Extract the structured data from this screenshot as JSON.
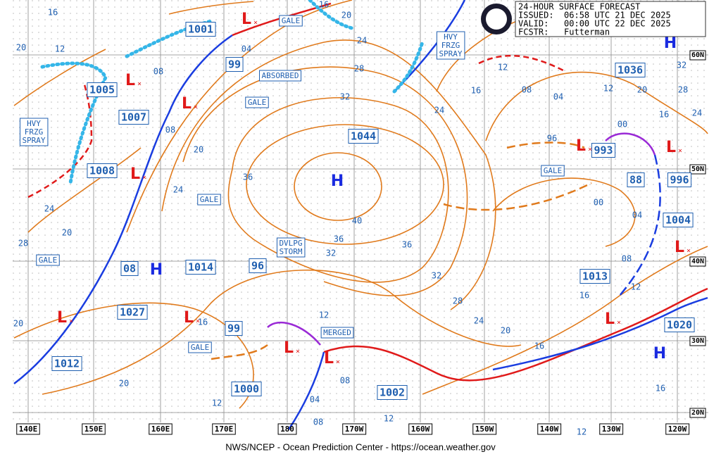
{
  "header": {
    "lines": [
      "24-HOUR SURFACE FORECAST",
      "ISSUED:  06:58 UTC 21 DEC 2025",
      "VALID:   00:00 UTC 22 DEC 2025",
      "FCSTR:   Futterman"
    ]
  },
  "footer": "NWS/NCEP - Ocean Prediction Center - https://ocean.weather.gov",
  "longitudes": [
    "140E",
    "150E",
    "160E",
    "170E",
    "180",
    "170W",
    "160W",
    "150W",
    "140W",
    "130W",
    "120W"
  ],
  "latitudes": [
    "60N",
    "50N",
    "40N",
    "30N",
    "20N"
  ],
  "pressures": [
    "1001",
    "99",
    "1005",
    "1007",
    "1008",
    "1044",
    "993",
    "996",
    "88",
    "1036",
    "1004",
    "1014",
    "08",
    "1027",
    "96",
    "1013",
    "99",
    "1000",
    "1002",
    "1012",
    "1020"
  ],
  "highs": [
    "H",
    "H",
    "H",
    "H"
  ],
  "lows": [
    "L",
    "L",
    "L",
    "L",
    "L",
    "L",
    "L",
    "L",
    "L",
    "L",
    "L",
    "L"
  ],
  "isobar_labels": [
    "16",
    "20",
    "12",
    "04",
    "08",
    "08",
    "20",
    "24",
    "20",
    "28",
    "24",
    "36",
    "32",
    "28",
    "24",
    "20",
    "16",
    "40",
    "36",
    "36",
    "32",
    "32",
    "28",
    "24",
    "20",
    "16",
    "12",
    "16",
    "20",
    "20",
    "12",
    "04",
    "08",
    "08",
    "12",
    "12",
    "16",
    "12",
    "08",
    "16",
    "04",
    "00",
    "96",
    "08",
    "04",
    "00",
    "12",
    "16",
    "20",
    "24",
    "28",
    "32",
    "16",
    "12",
    "24"
  ],
  "warnings": [
    {
      "lines": [
        "GALE"
      ]
    },
    {
      "lines": [
        "ABSORBED"
      ]
    },
    {
      "lines": [
        "GALE"
      ]
    },
    {
      "lines": [
        "GALE"
      ]
    },
    {
      "lines": [
        "HVY",
        "FRZG",
        "SPRAY"
      ]
    },
    {
      "lines": [
        "HVY",
        "FRZG",
        "SPRAY"
      ]
    },
    {
      "lines": [
        "GALE"
      ]
    },
    {
      "lines": [
        "GALE"
      ]
    },
    {
      "lines": [
        "DVLPG",
        "STORM"
      ]
    },
    {
      "lines": [
        "MERGED"
      ]
    },
    {
      "lines": [
        "GALE"
      ]
    }
  ]
}
